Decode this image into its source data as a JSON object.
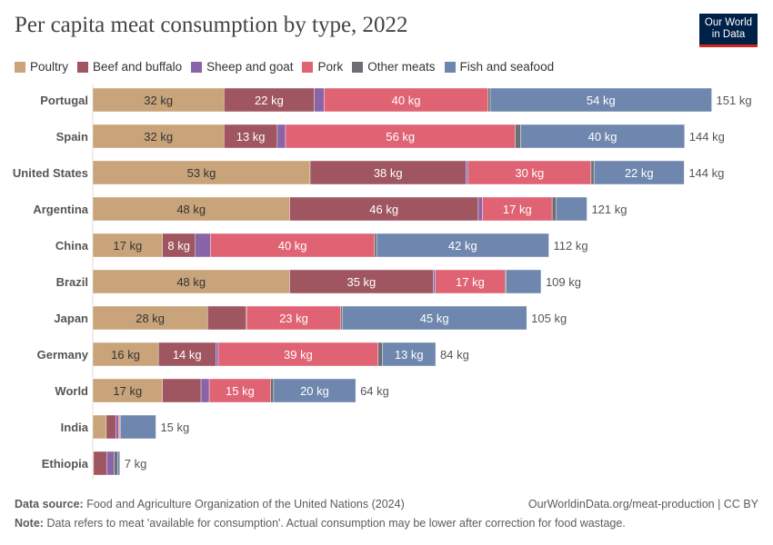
{
  "title": "Per capita meat consumption by type, 2022",
  "logo": {
    "line1": "Our World",
    "line2": "in Data"
  },
  "footer": {
    "source_label": "Data source:",
    "source": "Food and Agriculture Organization of the United Nations (2024)",
    "url": "OurWorldinData.org/meat-production | CC BY",
    "note_label": "Note:",
    "note": "Data refers to meat 'available for consumption'. Actual consumption may be lower after correction for food wastage."
  },
  "chart_data": {
    "type": "bar",
    "orientation": "horizontal",
    "stacked": true,
    "title": "Per capita meat consumption by type, 2022",
    "unit": "kg",
    "legend_position": "top",
    "grid": false,
    "categories": [
      "Portugal",
      "Spain",
      "United States",
      "Argentina",
      "China",
      "Brazil",
      "Japan",
      "Germany",
      "World",
      "India",
      "Ethiopia"
    ],
    "totals": [
      "151 kg",
      "144 kg",
      "144 kg",
      "121 kg",
      "112 kg",
      "109 kg",
      "105 kg",
      "84 kg",
      "64 kg",
      "15 kg",
      "7 kg"
    ],
    "series": [
      {
        "name": "Poultry",
        "color": "#c9a47a",
        "values": [
          32,
          32,
          53,
          48,
          17,
          48,
          28,
          16,
          17,
          3.3,
          0.2
        ],
        "labels": [
          "32 kg",
          "32 kg",
          "53 kg",
          "48 kg",
          "17 kg",
          "48 kg",
          "28 kg",
          "16 kg",
          "17 kg",
          "",
          ""
        ]
      },
      {
        "name": "Beef and buffalo",
        "color": "#9f5660",
        "values": [
          22,
          13,
          38,
          46,
          8,
          35,
          9.4,
          14,
          9.4,
          2.3,
          3.2
        ],
        "labels": [
          "22 kg",
          "13 kg",
          "38 kg",
          "46 kg",
          "8 kg",
          "35 kg",
          "",
          "14 kg",
          "",
          "",
          ""
        ]
      },
      {
        "name": "Sheep and goat",
        "color": "#8a64a8",
        "values": [
          2.4,
          2,
          0.5,
          1,
          3.7,
          0.5,
          0.1,
          0.6,
          2,
          0.7,
          1.8
        ],
        "labels": [
          "",
          "",
          "",
          "",
          "",
          "",
          "",
          "",
          "",
          "",
          ""
        ]
      },
      {
        "name": "Pork",
        "color": "#e06374",
        "values": [
          40,
          56,
          30,
          17,
          40,
          17,
          23,
          39,
          15,
          0.3,
          0
        ],
        "labels": [
          "40 kg",
          "56 kg",
          "30 kg",
          "17 kg",
          "40 kg",
          "17 kg",
          "23 kg",
          "39 kg",
          "15 kg",
          "",
          ""
        ]
      },
      {
        "name": "Other meats",
        "color": "#6b6e72",
        "values": [
          0.5,
          1.3,
          0.7,
          1,
          0.5,
          0.3,
          0.3,
          1,
          0.7,
          0.1,
          0.9
        ],
        "labels": [
          "",
          "",
          "",
          "",
          "",
          "",
          "",
          "",
          "",
          "",
          ""
        ]
      },
      {
        "name": "Fish and seafood",
        "color": "#6f87ae",
        "values": [
          54,
          40,
          22,
          7.5,
          42,
          8.5,
          45,
          13,
          20,
          8.7,
          0.5
        ],
        "labels": [
          "54 kg",
          "40 kg",
          "22 kg",
          "",
          "42 kg",
          "",
          "45 kg",
          "13 kg",
          "20 kg",
          "",
          ""
        ]
      }
    ]
  }
}
